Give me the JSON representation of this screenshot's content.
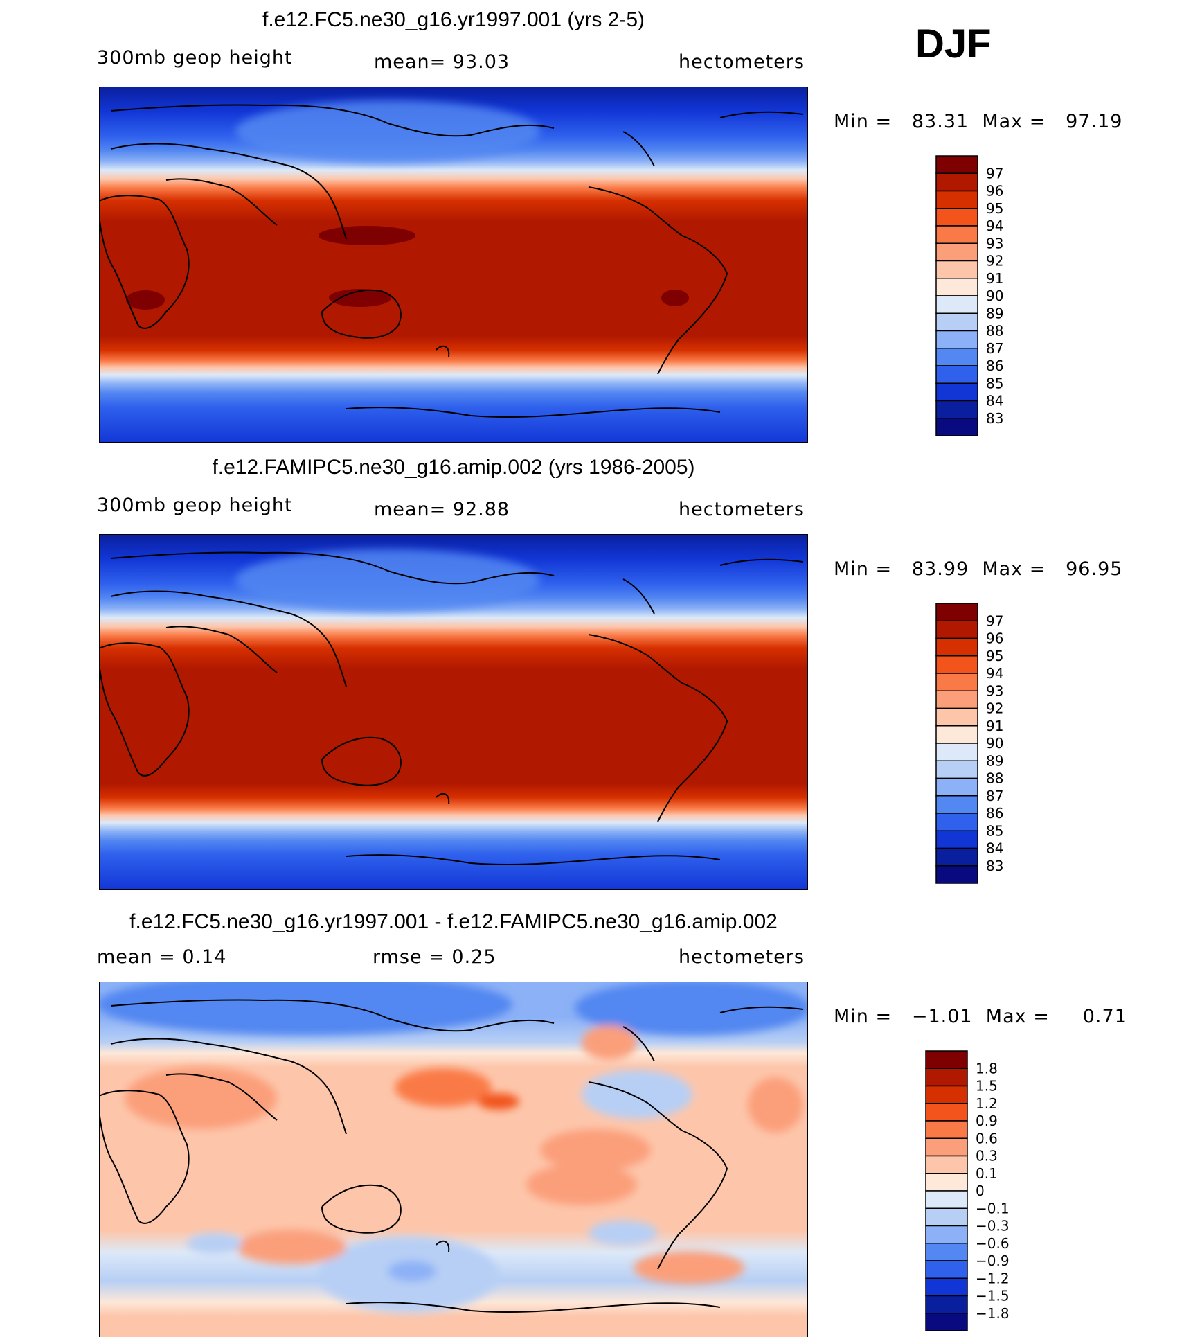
{
  "season": "DJF",
  "panels": [
    {
      "title": "f.e12.FC5.ne30_g16.yr1997.001 (yrs 2-5)",
      "variable": "300mb  geop  height",
      "stat_text": "mean=   93.03",
      "units": "hectometers",
      "min_label": "Min  =",
      "min_value": "83.31",
      "max_label": "Max  =",
      "max_value": "97.19"
    },
    {
      "title": "f.e12.FAMIPC5.ne30_g16.amip.002 (yrs 1986-2005)",
      "variable": "300mb  geop  height",
      "stat_text": "mean=   92.88",
      "units": "hectometers",
      "min_label": "Min  =",
      "min_value": "83.99",
      "max_label": "Max  =",
      "max_value": "96.95"
    },
    {
      "title": "f.e12.FC5.ne30_g16.yr1997.001 - f.e12.FAMIPC5.ne30_g16.amip.002",
      "mean_text": "mean  =     0.14",
      "rmse_text": "rmse  =     0.25",
      "units": "hectometers",
      "min_label": "Min  =",
      "min_value": "−1.01",
      "max_label": "Max  =",
      "max_value": "0.71"
    }
  ],
  "chart_data": [
    {
      "type": "heatmap",
      "title": "f.e12.FC5.ne30_g16.yr1997.001 (yrs 2-5)",
      "field": "300mb geop height",
      "units": "hectometers",
      "mean": 93.03,
      "min": 83.31,
      "max": 97.19,
      "colorbar_levels": [
        97,
        96,
        95,
        94,
        93,
        92,
        91,
        90,
        89,
        88,
        87,
        86,
        85,
        84,
        83
      ],
      "colors": [
        "#7e0000",
        "#b01800",
        "#d63000",
        "#f2541c",
        "#fa7a47",
        "#fb9f7a",
        "#fdc6ab",
        "#fde8d9",
        "#dde9f8",
        "#b7cff5",
        "#8cb1f6",
        "#5387f1",
        "#2f61ed",
        "#1236d6",
        "#0a1f9e",
        "#0a0a80"
      ]
    },
    {
      "type": "heatmap",
      "title": "f.e12.FAMIPC5.ne30_g16.amip.002 (yrs 1986-2005)",
      "field": "300mb geop height",
      "units": "hectometers",
      "mean": 92.88,
      "min": 83.99,
      "max": 96.95,
      "colorbar_levels": [
        97,
        96,
        95,
        94,
        93,
        92,
        91,
        90,
        89,
        88,
        87,
        86,
        85,
        84,
        83
      ],
      "colors": [
        "#7e0000",
        "#b01800",
        "#d63000",
        "#f2541c",
        "#fa7a47",
        "#fb9f7a",
        "#fdc6ab",
        "#fde8d9",
        "#dde9f8",
        "#b7cff5",
        "#8cb1f6",
        "#5387f1",
        "#2f61ed",
        "#1236d6",
        "#0a1f9e",
        "#0a0a80"
      ]
    },
    {
      "type": "heatmap",
      "title": "f.e12.FC5.ne30_g16.yr1997.001 - f.e12.FAMIPC5.ne30_g16.amip.002",
      "field": "difference",
      "units": "hectometers",
      "mean": 0.14,
      "rmse": 0.25,
      "min": -1.01,
      "max": 0.71,
      "colorbar_levels": [
        "1.8",
        "1.5",
        "1.2",
        "0.9",
        "0.6",
        "0.3",
        "0.1",
        "0",
        "−0.1",
        "−0.3",
        "−0.6",
        "−0.9",
        "−1.2",
        "−1.5",
        "−1.8"
      ],
      "colors": [
        "#7e0000",
        "#b01800",
        "#d63000",
        "#f2541c",
        "#fa7a47",
        "#fb9f7a",
        "#fdc6ab",
        "#fde8d9",
        "#dde9f8",
        "#b7cff5",
        "#8cb1f6",
        "#5387f1",
        "#2f61ed",
        "#1236d6",
        "#0a1f9e",
        "#0a0a80"
      ]
    }
  ]
}
